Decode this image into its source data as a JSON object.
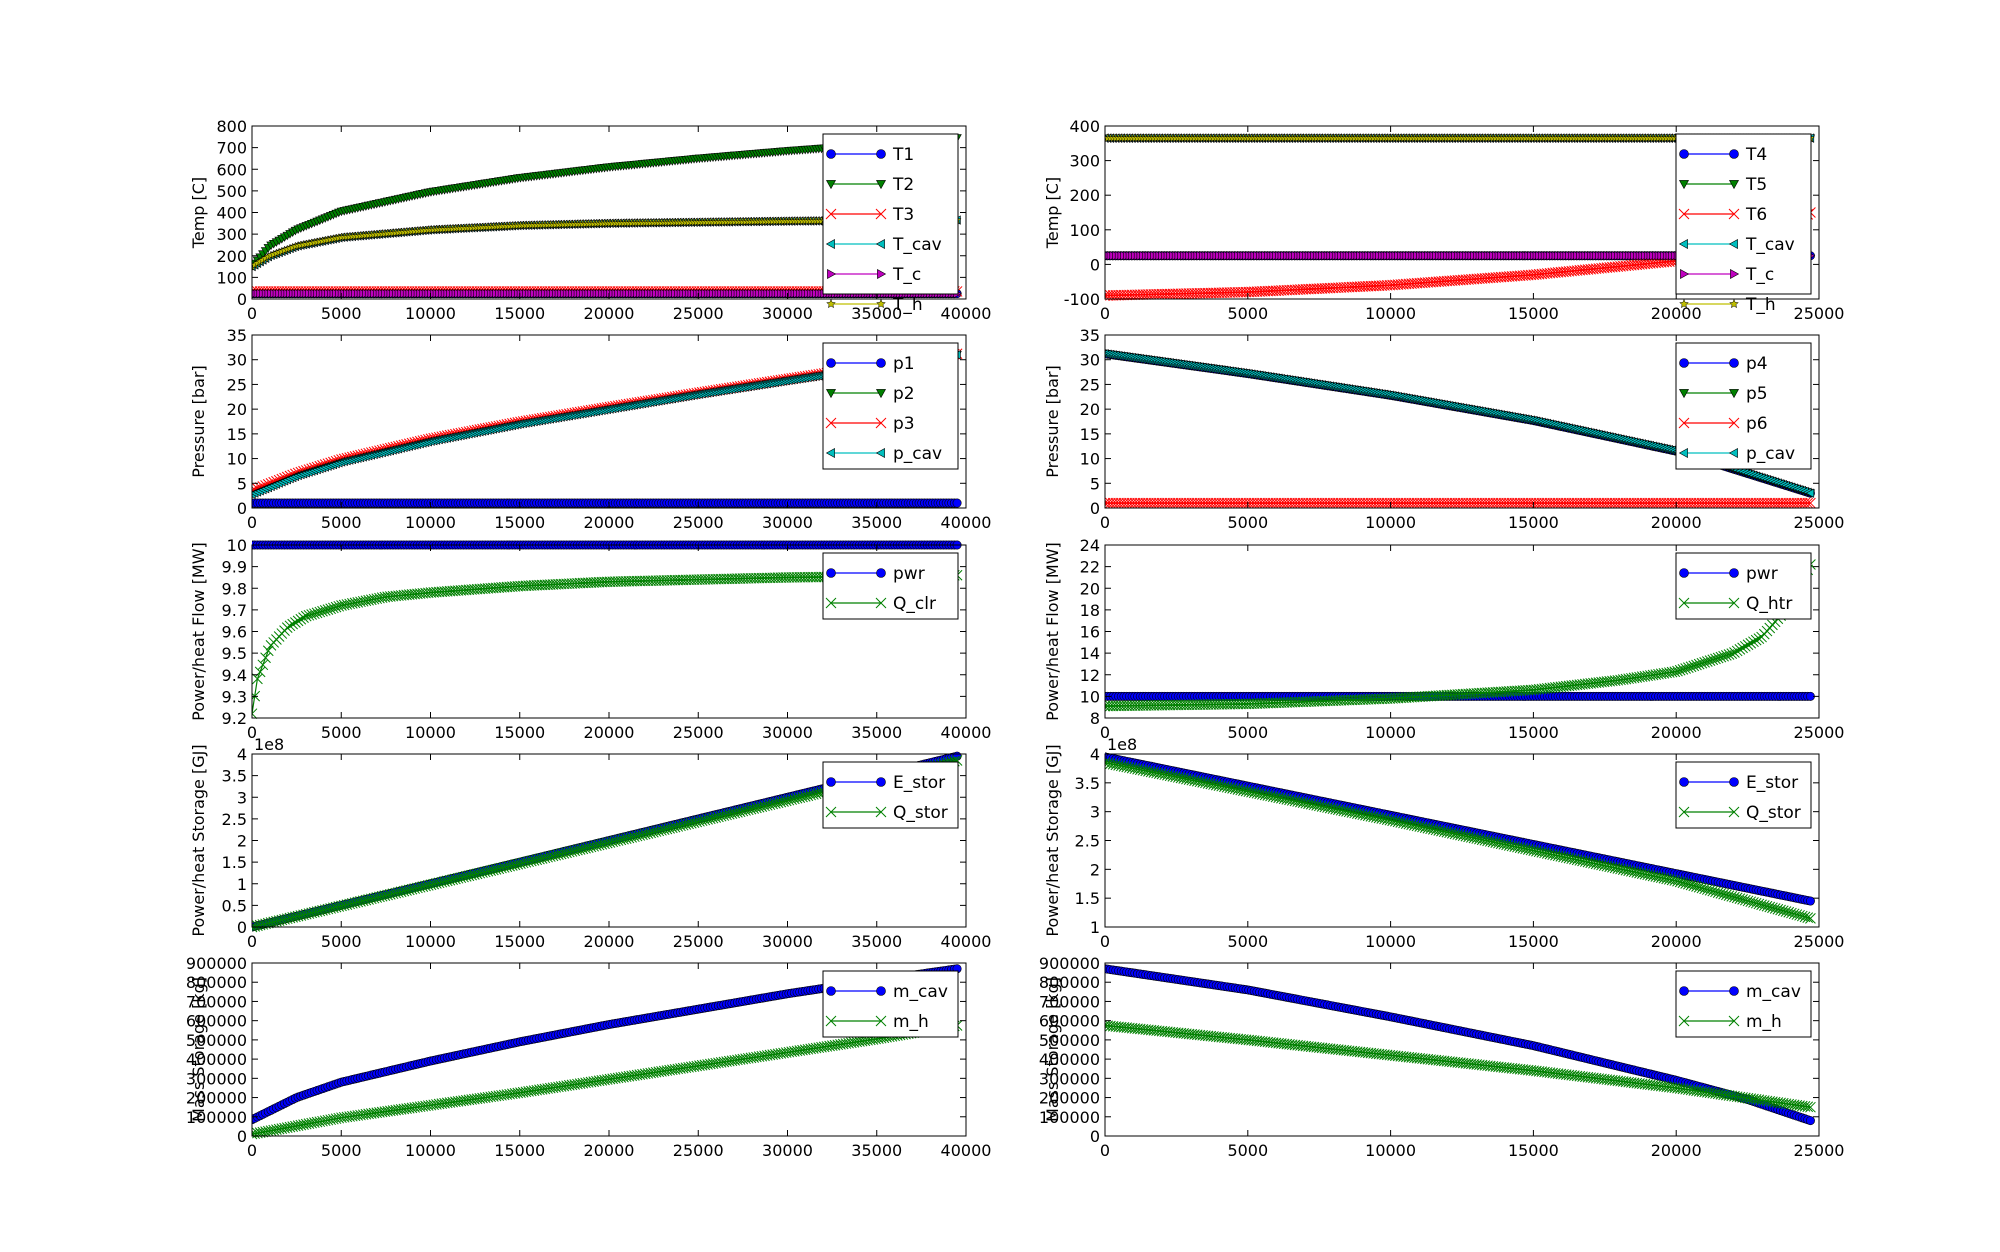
{
  "colors": {
    "blue": "#0000ff",
    "green": "#008000",
    "red": "#ff0000",
    "cyan": "#00bfbf",
    "magenta": "#bf00bf",
    "yellow": "#bfbf00"
  },
  "chart_data": [
    {
      "type": "line",
      "ylabel": "Temp [C]",
      "xlim": [
        0,
        40000
      ],
      "ylim": [
        0,
        800
      ],
      "xticks": [
        0,
        5000,
        10000,
        15000,
        20000,
        25000,
        30000,
        35000,
        40000
      ],
      "yticks": [
        0,
        100,
        200,
        300,
        400,
        500,
        600,
        700,
        800
      ],
      "legend": "top-right",
      "series": [
        {
          "name": "T1",
          "marker": "circle",
          "color": "#0000ff",
          "x": [
            0,
            39500
          ],
          "y": [
            25,
            25
          ]
        },
        {
          "name": "T2",
          "marker": "triangle-down",
          "color": "#008000",
          "x": [
            0,
            1000,
            2500,
            5000,
            10000,
            15000,
            20000,
            25000,
            30000,
            35000,
            39500
          ],
          "y": [
            150,
            245,
            320,
            405,
            495,
            560,
            610,
            650,
            685,
            715,
            745
          ]
        },
        {
          "name": "T3",
          "marker": "x",
          "color": "#ff0000",
          "x": [
            0,
            39500
          ],
          "y": [
            35,
            35
          ]
        },
        {
          "name": "T_cav",
          "marker": "triangle-left",
          "color": "#00bfbf",
          "x": [
            0,
            1000,
            2500,
            5000,
            10000,
            15000,
            20000,
            25000,
            30000,
            35000,
            39500
          ],
          "y": [
            150,
            200,
            245,
            285,
            320,
            340,
            350,
            355,
            360,
            363,
            365
          ]
        },
        {
          "name": "T_c",
          "marker": "triangle-right",
          "color": "#bf00bf",
          "x": [
            0,
            39500
          ],
          "y": [
            25,
            25
          ]
        },
        {
          "name": "T_h",
          "marker": "star",
          "color": "#bfbf00",
          "x": [
            0,
            1000,
            2500,
            5000,
            10000,
            15000,
            20000,
            25000,
            30000,
            35000,
            39500
          ],
          "y": [
            150,
            200,
            245,
            285,
            320,
            340,
            350,
            355,
            360,
            363,
            365
          ]
        }
      ]
    },
    {
      "type": "line",
      "ylabel": "Temp [C]",
      "xlim": [
        0,
        25000
      ],
      "ylim": [
        -100,
        400
      ],
      "xticks": [
        0,
        5000,
        10000,
        15000,
        20000,
        25000
      ],
      "yticks": [
        -100,
        0,
        100,
        200,
        300,
        400
      ],
      "legend": "top-right",
      "series": [
        {
          "name": "T4",
          "marker": "circle",
          "color": "#0000ff",
          "x": [
            0,
            24700
          ],
          "y": [
            25,
            25
          ]
        },
        {
          "name": "T5",
          "marker": "triangle-down",
          "color": "#008000",
          "x": [
            0,
            24700
          ],
          "y": [
            365,
            365
          ]
        },
        {
          "name": "T6",
          "marker": "x",
          "color": "#ff0000",
          "x": [
            0,
            5000,
            10000,
            15000,
            20000,
            22500,
            24000,
            24700
          ],
          "y": [
            -90,
            -80,
            -60,
            -30,
            10,
            50,
            110,
            150
          ]
        },
        {
          "name": "T_cav",
          "marker": "triangle-left",
          "color": "#00bfbf",
          "x": [
            0,
            24700
          ],
          "y": [
            365,
            365
          ]
        },
        {
          "name": "T_c",
          "marker": "triangle-right",
          "color": "#bf00bf",
          "x": [
            0,
            24700
          ],
          "y": [
            25,
            25
          ]
        },
        {
          "name": "T_h",
          "marker": "star",
          "color": "#bfbf00",
          "x": [
            0,
            24700
          ],
          "y": [
            365,
            365
          ]
        }
      ]
    },
    {
      "type": "line",
      "ylabel": "Pressure [bar]",
      "xlim": [
        0,
        40000
      ],
      "ylim": [
        0,
        35
      ],
      "xticks": [
        0,
        5000,
        10000,
        15000,
        20000,
        25000,
        30000,
        35000,
        40000
      ],
      "yticks": [
        0,
        5,
        10,
        15,
        20,
        25,
        30,
        35
      ],
      "legend": "top-right",
      "series": [
        {
          "name": "p1",
          "marker": "circle",
          "color": "#0000ff",
          "x": [
            0,
            39500
          ],
          "y": [
            1,
            1
          ]
        },
        {
          "name": "p2",
          "marker": "triangle-down",
          "color": "#008000",
          "x": [
            0,
            2500,
            5000,
            10000,
            15000,
            20000,
            25000,
            30000,
            35000,
            39500
          ],
          "y": [
            2.8,
            6.5,
            9.3,
            13.5,
            17.0,
            20.0,
            23.0,
            25.8,
            28.5,
            31.0
          ]
        },
        {
          "name": "p3",
          "marker": "x",
          "color": "#ff0000",
          "x": [
            0,
            2500,
            5000,
            10000,
            15000,
            20000,
            25000,
            30000,
            35000,
            39500
          ],
          "y": [
            3.5,
            7.0,
            9.8,
            14.0,
            17.4,
            20.4,
            23.3,
            26.1,
            28.8,
            31.2
          ]
        },
        {
          "name": "p_cav",
          "marker": "triangle-left",
          "color": "#00bfbf",
          "x": [
            0,
            2500,
            5000,
            10000,
            15000,
            20000,
            25000,
            30000,
            35000,
            39500
          ],
          "y": [
            2.8,
            6.5,
            9.3,
            13.5,
            17.0,
            20.0,
            23.0,
            25.8,
            28.5,
            31.0
          ]
        }
      ]
    },
    {
      "type": "line",
      "ylabel": "Pressure [bar]",
      "xlim": [
        0,
        25000
      ],
      "ylim": [
        0,
        35
      ],
      "xticks": [
        0,
        5000,
        10000,
        15000,
        20000,
        25000
      ],
      "yticks": [
        0,
        5,
        10,
        15,
        20,
        25,
        30,
        35
      ],
      "legend": "top-right",
      "series": [
        {
          "name": "p4",
          "marker": "circle",
          "color": "#0000ff",
          "x": [
            0,
            5000,
            10000,
            15000,
            20000,
            24700
          ],
          "y": [
            31.2,
            27.2,
            22.8,
            17.7,
            11.5,
            3.0
          ]
        },
        {
          "name": "p5",
          "marker": "triangle-down",
          "color": "#008000",
          "x": [
            0,
            5000,
            10000,
            15000,
            20000,
            24700
          ],
          "y": [
            31.2,
            27.2,
            22.8,
            17.7,
            11.5,
            3.0
          ]
        },
        {
          "name": "p6",
          "marker": "x",
          "color": "#ff0000",
          "x": [
            0,
            24700
          ],
          "y": [
            1,
            1
          ]
        },
        {
          "name": "p_cav",
          "marker": "triangle-left",
          "color": "#00bfbf",
          "x": [
            0,
            5000,
            10000,
            15000,
            20000,
            24700
          ],
          "y": [
            31.2,
            27.2,
            22.8,
            17.7,
            11.5,
            3.0
          ]
        }
      ]
    },
    {
      "type": "line",
      "ylabel": "Power/heat Flow [MW]",
      "xlim": [
        0,
        40000
      ],
      "ylim": [
        9.2,
        10.0
      ],
      "xticks": [
        0,
        5000,
        10000,
        15000,
        20000,
        25000,
        30000,
        35000,
        40000
      ],
      "yticks": [
        9.2,
        9.3,
        9.4,
        9.5,
        9.6,
        9.7,
        9.8,
        9.9,
        10.0
      ],
      "legend": "top-right",
      "series": [
        {
          "name": "pwr",
          "marker": "circle",
          "color": "#0000ff",
          "x": [
            0,
            39500
          ],
          "y": [
            10.0,
            10.0
          ]
        },
        {
          "name": "Q_clr",
          "marker": "x",
          "color": "#008000",
          "x": [
            0,
            300,
            1000,
            2000,
            3000,
            5000,
            7500,
            10000,
            15000,
            20000,
            25000,
            30000,
            35000,
            39500
          ],
          "y": [
            9.22,
            9.38,
            9.53,
            9.62,
            9.67,
            9.72,
            9.76,
            9.78,
            9.81,
            9.83,
            9.84,
            9.85,
            9.855,
            9.86
          ]
        }
      ]
    },
    {
      "type": "line",
      "ylabel": "Power/heat Flow [MW]",
      "xlim": [
        0,
        25000
      ],
      "ylim": [
        8,
        24
      ],
      "xticks": [
        0,
        5000,
        10000,
        15000,
        20000,
        25000
      ],
      "yticks": [
        8,
        10,
        12,
        14,
        16,
        18,
        20,
        22,
        24
      ],
      "legend": "top-right",
      "series": [
        {
          "name": "pwr",
          "marker": "circle",
          "color": "#0000ff",
          "x": [
            0,
            24700
          ],
          "y": [
            10.0,
            10.0
          ]
        },
        {
          "name": "Q_htr",
          "marker": "x",
          "color": "#008000",
          "x": [
            0,
            5000,
            10000,
            15000,
            18000,
            20000,
            22000,
            23000,
            24000,
            24700
          ],
          "y": [
            9.1,
            9.3,
            9.8,
            10.6,
            11.5,
            12.3,
            14.0,
            15.5,
            18.5,
            22.2
          ]
        }
      ]
    },
    {
      "type": "line",
      "ylabel": "Power/heat Storage [GJ]",
      "yscale_label": "1e8",
      "xlim": [
        0,
        40000
      ],
      "ylim": [
        0.0,
        4.0
      ],
      "xticks": [
        0,
        5000,
        10000,
        15000,
        20000,
        25000,
        30000,
        35000,
        40000
      ],
      "yticks": [
        0.0,
        0.5,
        1.0,
        1.5,
        2.0,
        2.5,
        3.0,
        3.5,
        4.0
      ],
      "legend": "top-right",
      "series": [
        {
          "name": "E_stor",
          "marker": "circle",
          "color": "#0000ff",
          "x": [
            0,
            39500
          ],
          "y": [
            0.0,
            3.95
          ]
        },
        {
          "name": "Q_stor",
          "marker": "x",
          "color": "#008000",
          "x": [
            0,
            39500
          ],
          "y": [
            0.0,
            3.85
          ]
        }
      ]
    },
    {
      "type": "line",
      "ylabel": "Power/heat Storage [GJ]",
      "yscale_label": "1e8",
      "xlim": [
        0,
        25000
      ],
      "ylim": [
        1.0,
        4.0
      ],
      "xticks": [
        0,
        5000,
        10000,
        15000,
        20000,
        25000
      ],
      "yticks": [
        1.0,
        1.5,
        2.0,
        2.5,
        3.0,
        3.5,
        4.0
      ],
      "legend": "top-right",
      "series": [
        {
          "name": "E_stor",
          "marker": "circle",
          "color": "#0000ff",
          "x": [
            0,
            24700
          ],
          "y": [
            3.95,
            1.45
          ]
        },
        {
          "name": "Q_stor",
          "marker": "x",
          "color": "#008000",
          "x": [
            0,
            10000,
            20000,
            24700
          ],
          "y": [
            3.85,
            2.85,
            1.8,
            1.15
          ]
        }
      ]
    },
    {
      "type": "line",
      "ylabel": "Mass Storage [kg]",
      "xlim": [
        0,
        40000
      ],
      "ylim": [
        0,
        900000
      ],
      "xticks": [
        0,
        5000,
        10000,
        15000,
        20000,
        25000,
        30000,
        35000,
        40000
      ],
      "yticks": [
        0,
        100000,
        200000,
        300000,
        400000,
        500000,
        600000,
        700000,
        800000,
        900000
      ],
      "legend": "top-right",
      "series": [
        {
          "name": "m_cav",
          "marker": "circle",
          "color": "#0000ff",
          "x": [
            0,
            2500,
            5000,
            10000,
            15000,
            20000,
            25000,
            30000,
            35000,
            39500
          ],
          "y": [
            85000,
            200000,
            280000,
            390000,
            490000,
            580000,
            660000,
            740000,
            810000,
            870000
          ]
        },
        {
          "name": "m_h",
          "marker": "x",
          "color": "#008000",
          "x": [
            0,
            5000,
            10000,
            15000,
            20000,
            25000,
            30000,
            35000,
            39500
          ],
          "y": [
            10000,
            95000,
            160000,
            225000,
            295000,
            365000,
            435000,
            505000,
            575000
          ]
        }
      ]
    },
    {
      "type": "line",
      "ylabel": "Mass Storage [kg]",
      "xlim": [
        0,
        25000
      ],
      "ylim": [
        0,
        900000
      ],
      "xticks": [
        0,
        5000,
        10000,
        15000,
        20000,
        25000
      ],
      "yticks": [
        0,
        100000,
        200000,
        300000,
        400000,
        500000,
        600000,
        700000,
        800000,
        900000
      ],
      "legend": "top-right",
      "series": [
        {
          "name": "m_cav",
          "marker": "circle",
          "color": "#0000ff",
          "x": [
            0,
            5000,
            10000,
            15000,
            20000,
            22500,
            24700
          ],
          "y": [
            870000,
            760000,
            620000,
            470000,
            290000,
            190000,
            80000
          ]
        },
        {
          "name": "m_h",
          "marker": "x",
          "color": "#008000",
          "x": [
            0,
            5000,
            10000,
            15000,
            20000,
            24700
          ],
          "y": [
            575000,
            500000,
            420000,
            340000,
            250000,
            150000
          ]
        }
      ]
    }
  ]
}
